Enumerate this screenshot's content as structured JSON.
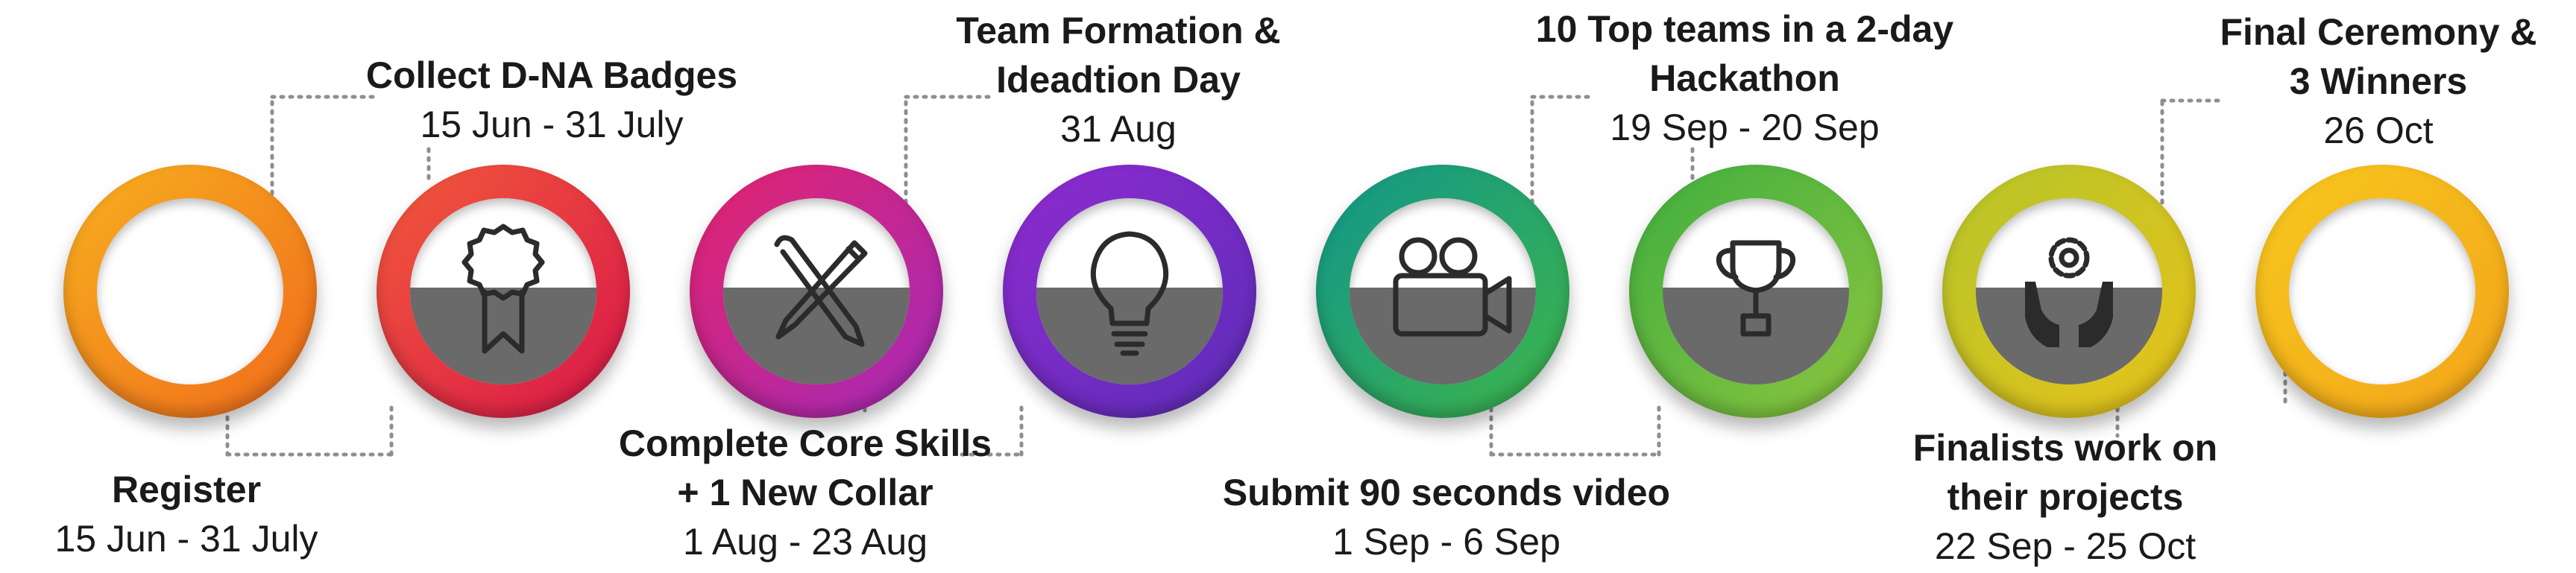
{
  "steps": [
    {
      "title_lines": [
        "Register"
      ],
      "date": "15 Jun - 31 July",
      "icon": "none",
      "colors": [
        "#f7b01e",
        "#f06a1c"
      ]
    },
    {
      "title_lines": [
        "Collect D-NA Badges"
      ],
      "date": "15 Jun - 31 July",
      "icon": "badge-icon",
      "colors": [
        "#f25a3a",
        "#d9164a"
      ]
    },
    {
      "title_lines": [
        "Complete Core Skills",
        "+ 1 New Collar"
      ],
      "date": "1 Aug - 23 Aug",
      "icon": "pen-brush-icon",
      "colors": [
        "#e3246e",
        "#a32ab8"
      ]
    },
    {
      "title_lines": [
        "Team Formation &",
        "Ideadtion Day"
      ],
      "date": "31 Aug",
      "icon": "lightbulb-icon",
      "colors": [
        "#8e2bd0",
        "#5d2db8"
      ]
    },
    {
      "title_lines": [
        "Submit 90 seconds video"
      ],
      "date": "1 Sep - 6 Sep",
      "icon": "video-camera-icon",
      "colors": [
        "#11968a",
        "#3fb54a"
      ]
    },
    {
      "title_lines": [
        "10  Top teams in a 2-day",
        "Hackathon"
      ],
      "date": "19 Sep - 20 Sep",
      "icon": "trophy-icon",
      "colors": [
        "#3fae3f",
        "#8dc63f"
      ]
    },
    {
      "title_lines": [
        "Finalists work on",
        "their projects"
      ],
      "date": "22 Sep - 25 Oct",
      "icon": "gear-hands-icon",
      "colors": [
        "#b5c52a",
        "#e8c21a"
      ]
    },
    {
      "title_lines": [
        "Final Ceremony &",
        "3 Winners"
      ],
      "date": "26 Oct",
      "icon": "none",
      "colors": [
        "#f7c81e",
        "#f3a41a"
      ]
    }
  ]
}
